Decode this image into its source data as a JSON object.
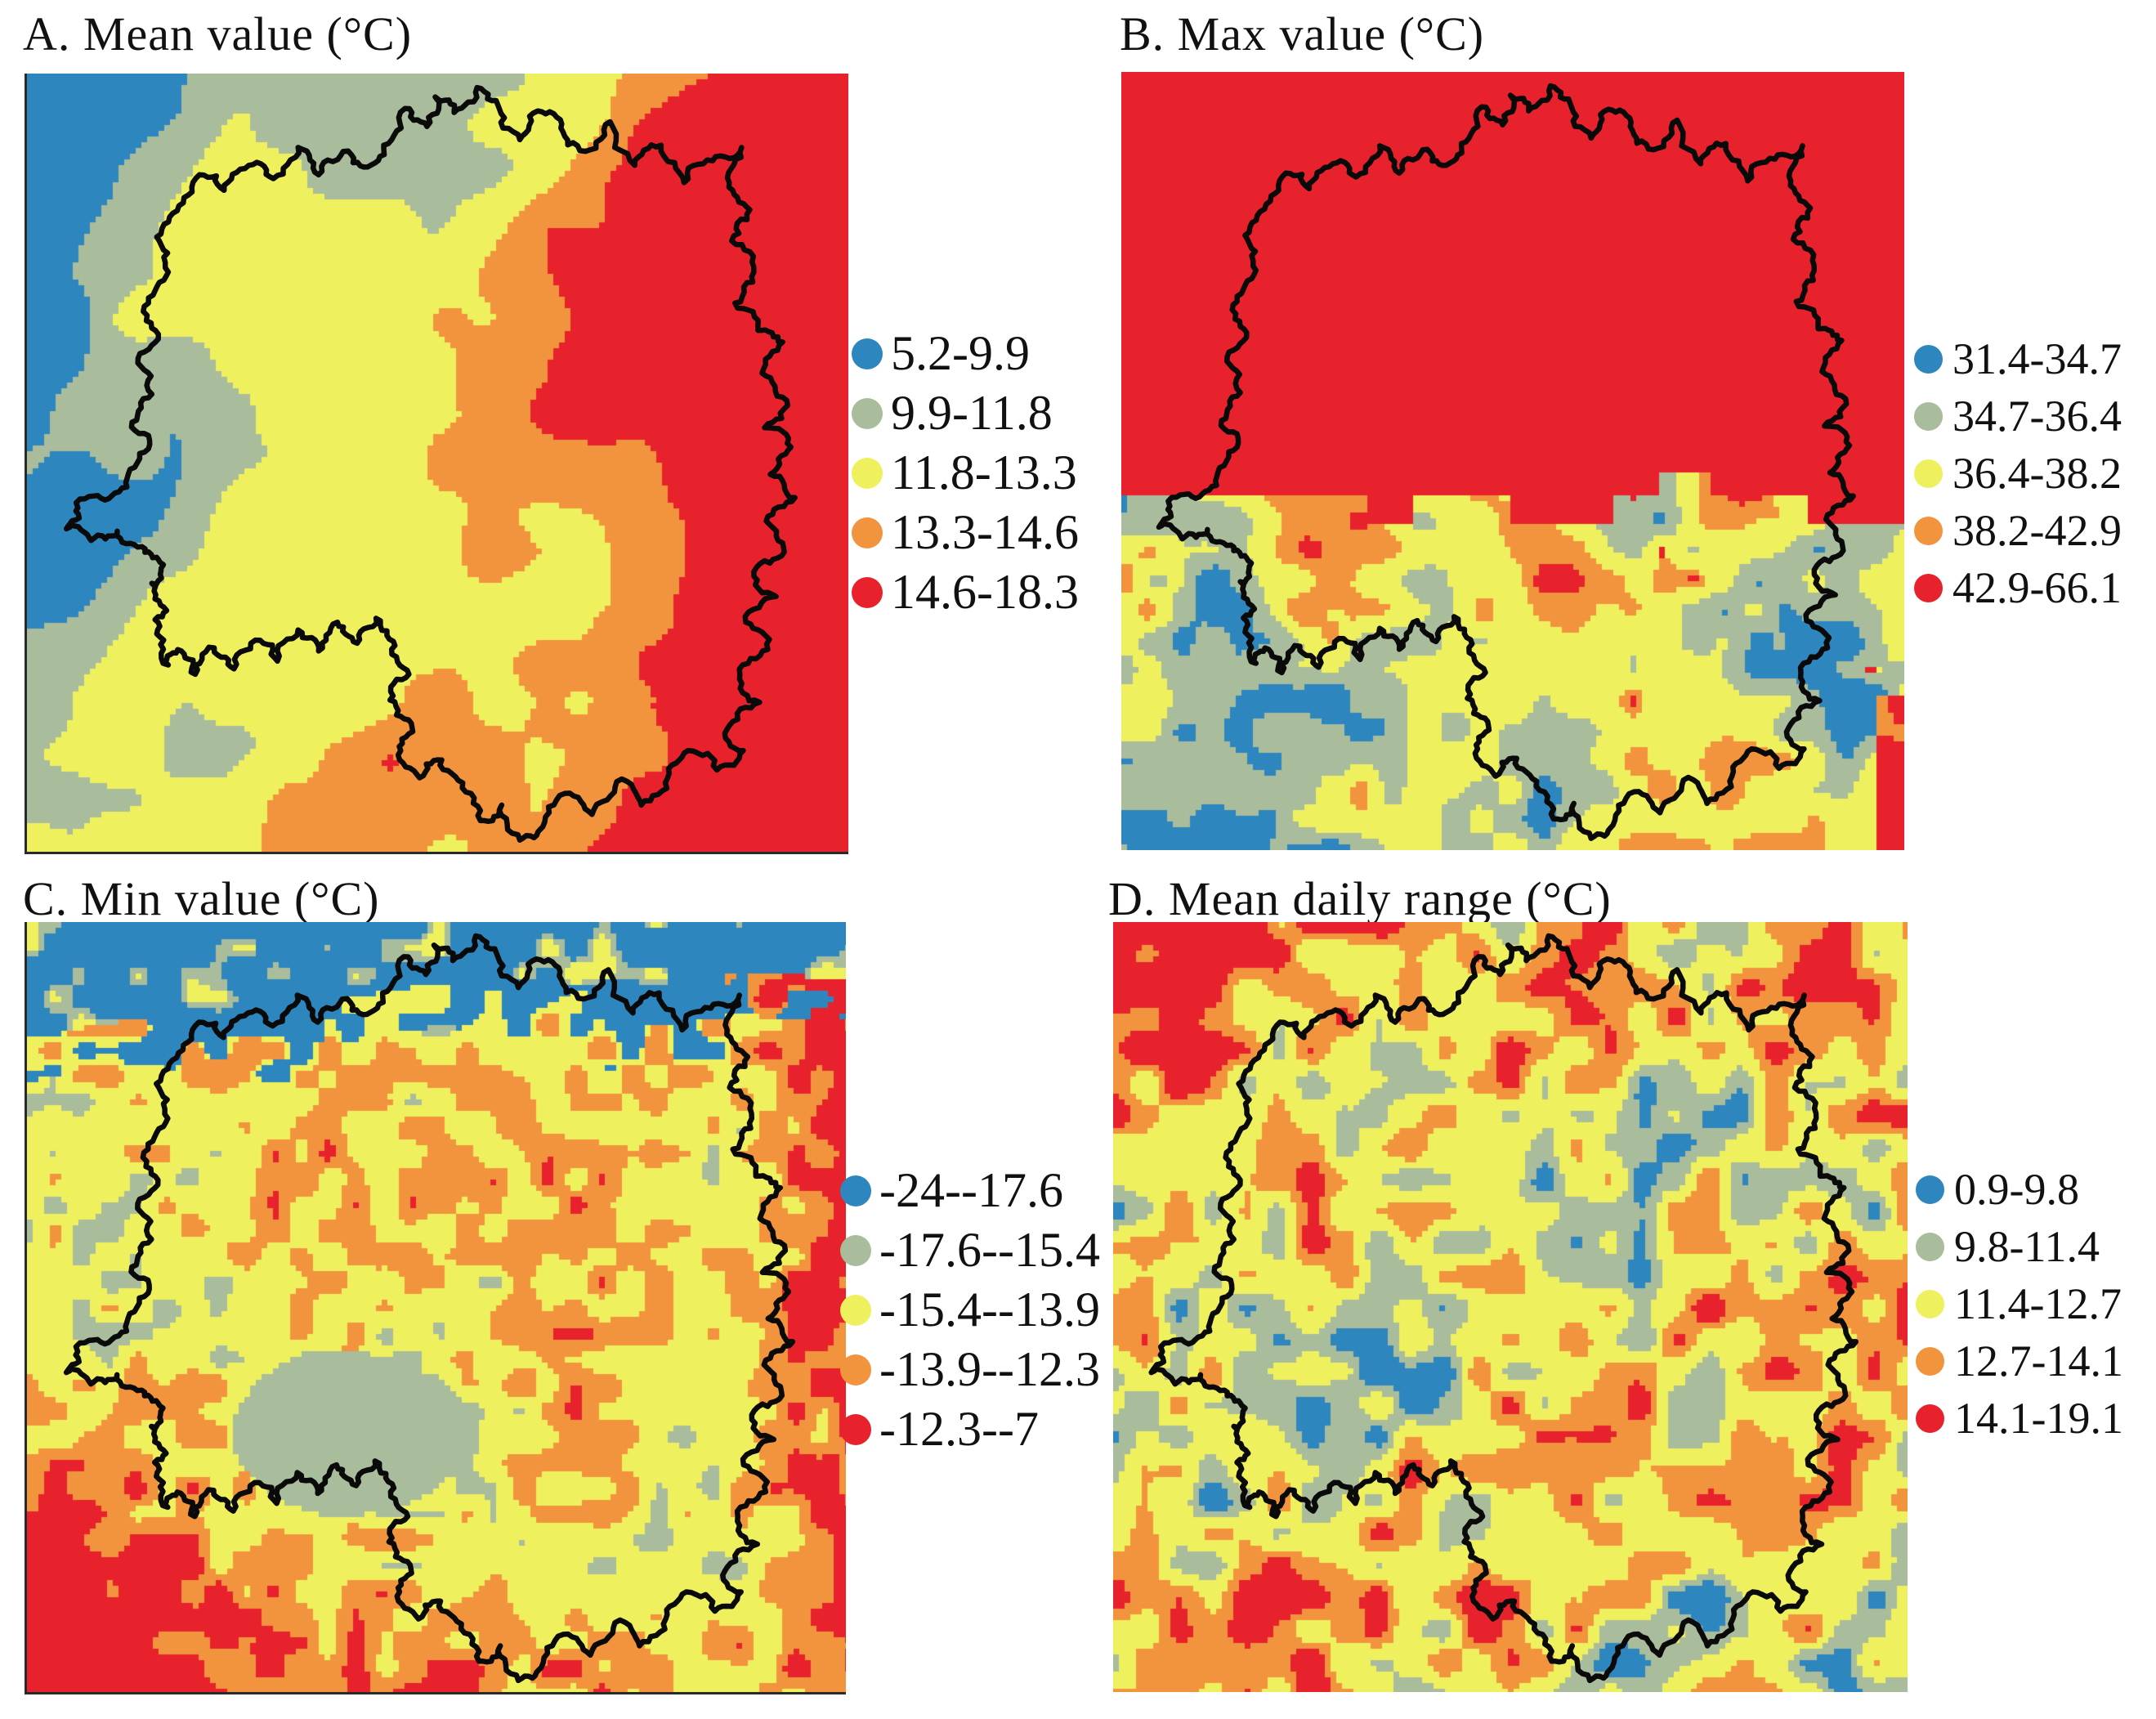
{
  "figure": {
    "palette": {
      "blue": "#2e86be",
      "sage": "#a9bc9b",
      "yellow": "#eff05e",
      "orange": "#f2943d",
      "red": "#e8222d",
      "boundary": "#0a0a0a",
      "background": "#ffffff"
    },
    "panels": [
      {
        "id": "A",
        "title": "A. Mean value (°C)",
        "legend": [
          {
            "color": "#2e86be",
            "label": "5.2-9.9"
          },
          {
            "color": "#a9bc9b",
            "label": "9.9-11.8"
          },
          {
            "color": "#eff05e",
            "label": "11.8-13.3"
          },
          {
            "color": "#f2943d",
            "label": "13.3-14.6"
          },
          {
            "color": "#e8222d",
            "label": "14.6-18.3"
          }
        ]
      },
      {
        "id": "B",
        "title": "B. Max value (°C)",
        "legend": [
          {
            "color": "#2e86be",
            "label": "31.4-34.7"
          },
          {
            "color": "#a9bc9b",
            "label": "34.7-36.4"
          },
          {
            "color": "#eff05e",
            "label": "36.4-38.2"
          },
          {
            "color": "#f2943d",
            "label": "38.2-42.9"
          },
          {
            "color": "#e8222d",
            "label": "42.9-66.1"
          }
        ]
      },
      {
        "id": "C",
        "title": "C. Min value (°C)",
        "legend": [
          {
            "color": "#2e86be",
            "label": "-24--17.6"
          },
          {
            "color": "#a9bc9b",
            "label": "-17.6--15.4"
          },
          {
            "color": "#eff05e",
            "label": "-15.4--13.9"
          },
          {
            "color": "#f2943d",
            "label": "-13.9--12.3"
          },
          {
            "color": "#e8222d",
            "label": "-12.3--7"
          }
        ]
      },
      {
        "id": "D",
        "title": "D. Mean daily range (°C)",
        "legend": [
          {
            "color": "#2e86be",
            "label": "0.9-9.8"
          },
          {
            "color": "#a9bc9b",
            "label": "9.8-11.4"
          },
          {
            "color": "#eff05e",
            "label": "11.4-12.7"
          },
          {
            "color": "#f2943d",
            "label": "12.7-14.1"
          },
          {
            "color": "#e8222d",
            "label": "14.1-19.1"
          }
        ]
      }
    ]
  }
}
